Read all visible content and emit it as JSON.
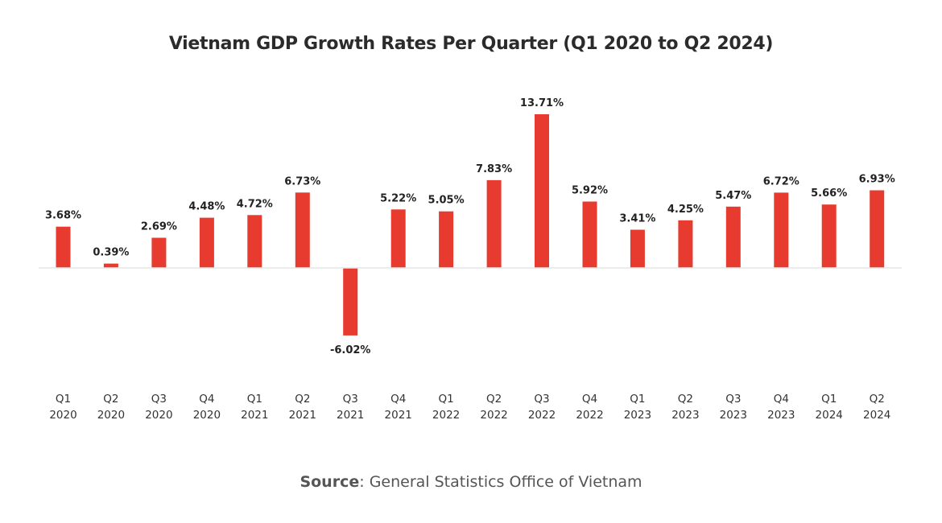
{
  "chart_data": {
    "type": "bar",
    "title": "Vietnam GDP Growth Rates Per Quarter (Q1 2020 to Q2 2024)",
    "xlabel": "",
    "ylabel": "",
    "categories": [
      [
        "Q1",
        "2020"
      ],
      [
        "Q2",
        "2020"
      ],
      [
        "Q3",
        "2020"
      ],
      [
        "Q4",
        "2020"
      ],
      [
        "Q1",
        "2021"
      ],
      [
        "Q2",
        "2021"
      ],
      [
        "Q3",
        "2021"
      ],
      [
        "Q4",
        "2021"
      ],
      [
        "Q1",
        "2022"
      ],
      [
        "Q2",
        "2022"
      ],
      [
        "Q3",
        "2022"
      ],
      [
        "Q4",
        "2022"
      ],
      [
        "Q1",
        "2023"
      ],
      [
        "Q2",
        "2023"
      ],
      [
        "Q3",
        "2023"
      ],
      [
        "Q4",
        "2023"
      ],
      [
        "Q1",
        "2024"
      ],
      [
        "Q2",
        "2024"
      ]
    ],
    "values": [
      3.68,
      0.39,
      2.69,
      4.48,
      4.72,
      6.73,
      -6.02,
      5.22,
      5.05,
      7.83,
      13.71,
      5.92,
      3.41,
      4.25,
      5.47,
      6.72,
      5.66,
      6.93
    ],
    "value_labels": [
      "3.68%",
      "0.39%",
      "2.69%",
      "4.48%",
      "4.72%",
      "6.73%",
      "-6.02%",
      "5.22%",
      "5.05%",
      "7.83%",
      "13.71%",
      "5.92%",
      "3.41%",
      "4.25%",
      "5.47%",
      "6.72%",
      "5.66%",
      "6.93%"
    ],
    "unit": "%",
    "ylim": [
      -6.02,
      13.71
    ],
    "grid": false,
    "legend": "none",
    "colors": {
      "bar": "#e63b2e",
      "axis": "#e6e6e6",
      "title": "#2b2b2b",
      "labels": "#222222"
    }
  },
  "source": {
    "key": "Source",
    "separator": ": ",
    "value": "General Statistics Office of Vietnam"
  }
}
